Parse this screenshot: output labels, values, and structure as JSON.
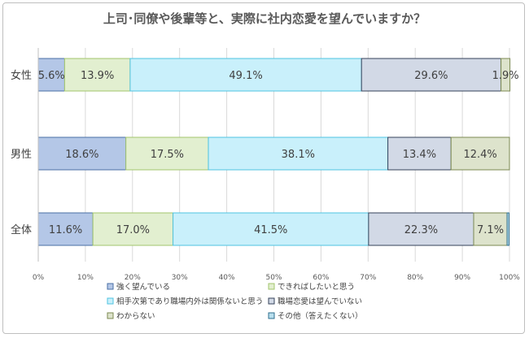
{
  "chart_data": {
    "type": "bar",
    "orientation": "horizontal",
    "stacked": "100%",
    "title": "上司･同僚や後輩等と、実際に社内恋愛を望んでいますか？",
    "categories": [
      "女性",
      "男性",
      "全体"
    ],
    "xlim": [
      0,
      100
    ],
    "xticks": [
      "0%",
      "10%",
      "20%",
      "30%",
      "40%",
      "50%",
      "60%",
      "70%",
      "80%",
      "90%",
      "100%"
    ],
    "grid": true,
    "legend_position": "bottom",
    "series": [
      {
        "name": "強く望んでいる",
        "color": "#b4c7e7",
        "border": "#4a6fa5",
        "values": [
          5.6,
          18.6,
          11.6
        ],
        "labels": [
          "5.6%",
          "18.6%",
          "11.6%"
        ]
      },
      {
        "name": "できればしたいと思う",
        "color": "#e2efd0",
        "border": "#a3c66d",
        "values": [
          13.9,
          17.5,
          17.0
        ],
        "labels": [
          "13.9%",
          "17.5%",
          "17.0%"
        ]
      },
      {
        "name": "相手次第であり職場内外は関係ないと思う",
        "color": "#c9f0fb",
        "border": "#4fc3e0",
        "values": [
          49.1,
          38.1,
          41.5
        ],
        "labels": [
          "49.1%",
          "38.1%",
          "41.5%"
        ]
      },
      {
        "name": "職場恋愛は望んでいない",
        "color": "#d2d9e6",
        "border": "#34425a",
        "values": [
          29.6,
          13.4,
          22.3
        ],
        "labels": [
          "29.6%",
          "13.4%",
          "22.3%"
        ]
      },
      {
        "name": "わからない",
        "color": "#dde3cc",
        "border": "#7c8a52",
        "values": [
          1.9,
          12.4,
          7.1
        ],
        "labels": [
          "1.9%",
          "12.4%",
          "7.1%"
        ]
      },
      {
        "name": "その他（答えたくない）",
        "color": "#b9dfee",
        "border": "#2f6f8f",
        "values": [
          0.0,
          0.0,
          0.4
        ],
        "labels": [
          "",
          "",
          ""
        ]
      }
    ]
  }
}
